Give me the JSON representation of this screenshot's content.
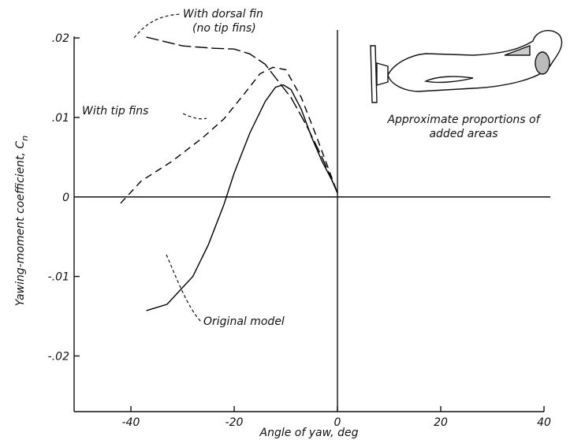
{
  "chart_data": {
    "type": "line",
    "xlabel": "Angle of yaw, deg",
    "ylabel": "Yawing-moment coefficient,",
    "ylabel_symbol": "C",
    "ylabel_subscript": "n",
    "xlim": [
      -51,
      40
    ],
    "ylim": [
      -0.027,
      0.021
    ],
    "xticks": [
      -40,
      -20,
      0,
      20,
      40
    ],
    "yticks": [
      {
        "value": 0.02,
        "label": ".02"
      },
      {
        "value": 0.01,
        "label": ".01"
      },
      0,
      {
        "value": -0.01,
        "label": "-.01"
      },
      {
        "value": -0.02,
        "label": "-.02"
      }
    ],
    "series": [
      {
        "name": "Original model",
        "color": "#000000",
        "dash": "solid",
        "x": [
          -37,
          -33,
          -28,
          -25,
          -22,
          -20,
          -17,
          -14,
          -12,
          -10.5,
          -9,
          -7,
          -5,
          -3,
          -1,
          0
        ],
        "values": [
          -0.0143,
          -0.0135,
          -0.01,
          -0.006,
          -0.001,
          0.003,
          0.008,
          0.012,
          0.0138,
          0.0141,
          0.0135,
          0.011,
          0.0075,
          0.0045,
          0.002,
          0.0005
        ]
      },
      {
        "name": "With tip fins",
        "color": "#000000",
        "dash": "dashed",
        "x": [
          -42,
          -38,
          -32,
          -26,
          -22,
          -18,
          -15,
          -12.5,
          -10,
          -7,
          -4,
          -2,
          0
        ],
        "values": [
          -0.0008,
          0.002,
          0.0045,
          0.0075,
          0.0098,
          0.013,
          0.0155,
          0.0163,
          0.016,
          0.0125,
          0.0075,
          0.004,
          0.0005
        ]
      },
      {
        "name": "With dorsal fin",
        "color": "#000000",
        "dash": "long-dash",
        "x": [
          -37,
          -30,
          -24,
          -20,
          -17,
          -14,
          -12,
          -9,
          -6,
          -3,
          0
        ],
        "values": [
          0.0201,
          0.019,
          0.0187,
          0.0186,
          0.018,
          0.0167,
          0.015,
          0.0125,
          0.009,
          0.005,
          0.0005
        ]
      }
    ],
    "annotations": [
      "(no tip fins)",
      "Approximate proportions of",
      "added areas"
    ]
  }
}
